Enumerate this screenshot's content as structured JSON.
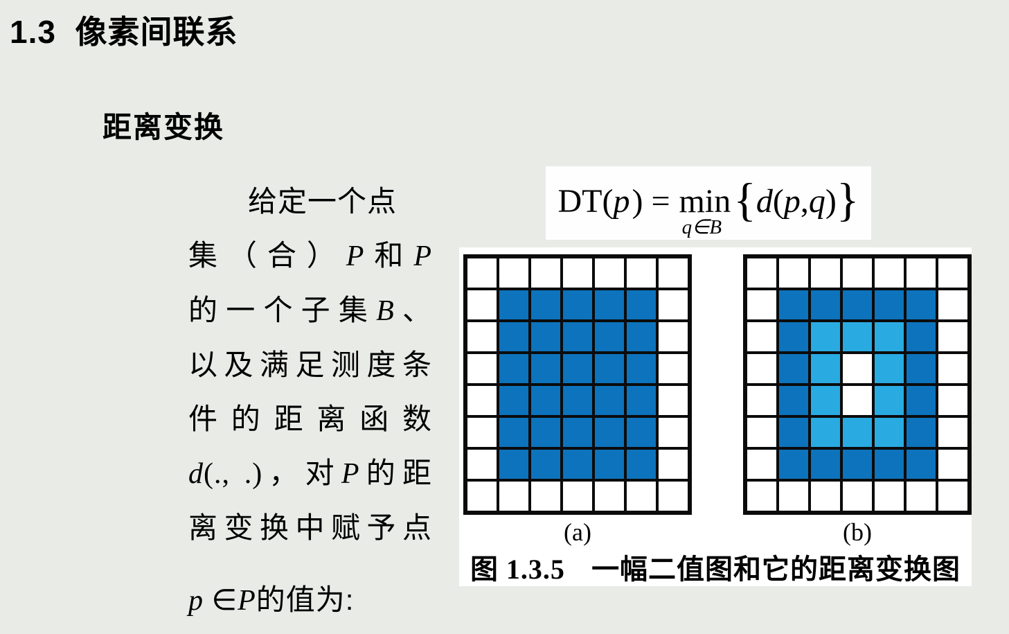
{
  "slide": {
    "title": "1.3  像素间联系",
    "subtitle": "距离变换",
    "background_color": "#e9ebe7"
  },
  "body": {
    "lines": [
      {
        "indent": true,
        "segments": [
          {
            "t": "给定一个点"
          }
        ]
      },
      {
        "justify": true,
        "segments": [
          {
            "t": "集（合）"
          },
          {
            "t": "P",
            "i": true
          },
          {
            "t": "和"
          },
          {
            "t": "P",
            "i": true
          }
        ]
      },
      {
        "justify": true,
        "segments": [
          {
            "t": "的一个子集"
          },
          {
            "t": "B",
            "i": true
          },
          {
            "t": "、"
          }
        ]
      },
      {
        "justify": true,
        "segments": [
          {
            "t": "以及满足测度条"
          }
        ]
      },
      {
        "justify": true,
        "segments": [
          {
            "t": "件的距离函数"
          }
        ]
      },
      {
        "justify": true,
        "segments": [
          {
            "t": "d",
            "i": true
          },
          {
            "t": "(., .)",
            "s": true
          },
          {
            "t": "，对"
          },
          {
            "t": "P",
            "i": true
          },
          {
            "t": "的距"
          }
        ]
      },
      {
        "justify": true,
        "segments": [
          {
            "t": "离变换中赋予点"
          }
        ]
      },
      {
        "gap_before": true,
        "segments": [
          {
            "t": "p",
            "i": true
          },
          {
            "t": " ∈",
            "s": true
          },
          {
            "t": "P",
            "i": true
          },
          {
            "t": "的值为:"
          }
        ]
      }
    ]
  },
  "formula": {
    "prefix": "DT(",
    "var_p": "p",
    "equals": ") = ",
    "min_label": "min",
    "min_sub": "q∈B",
    "open_brace": "{",
    "var_d": "d",
    "open_paren": "(",
    "arg_p": "p",
    "comma": ",",
    "arg_q": "q",
    "close_paren": ")",
    "close_brace": "}"
  },
  "figure": {
    "label_a": "(a)",
    "label_b": "(b)",
    "caption_prefix": "图 1.3.5",
    "caption_text": "一幅二值图和它的距离变换图",
    "cell_colors": {
      "0": "#ffffff",
      "1": "#0d73bc",
      "2": "#29abe2"
    },
    "grid_a": [
      "0000000",
      "0111110",
      "0111110",
      "0111110",
      "0111110",
      "0111110",
      "0111110",
      "0000000"
    ],
    "grid_b": [
      "0000000",
      "0111110",
      "0122210",
      "0120210",
      "0120210",
      "0122210",
      "0111110",
      "0000000"
    ]
  }
}
